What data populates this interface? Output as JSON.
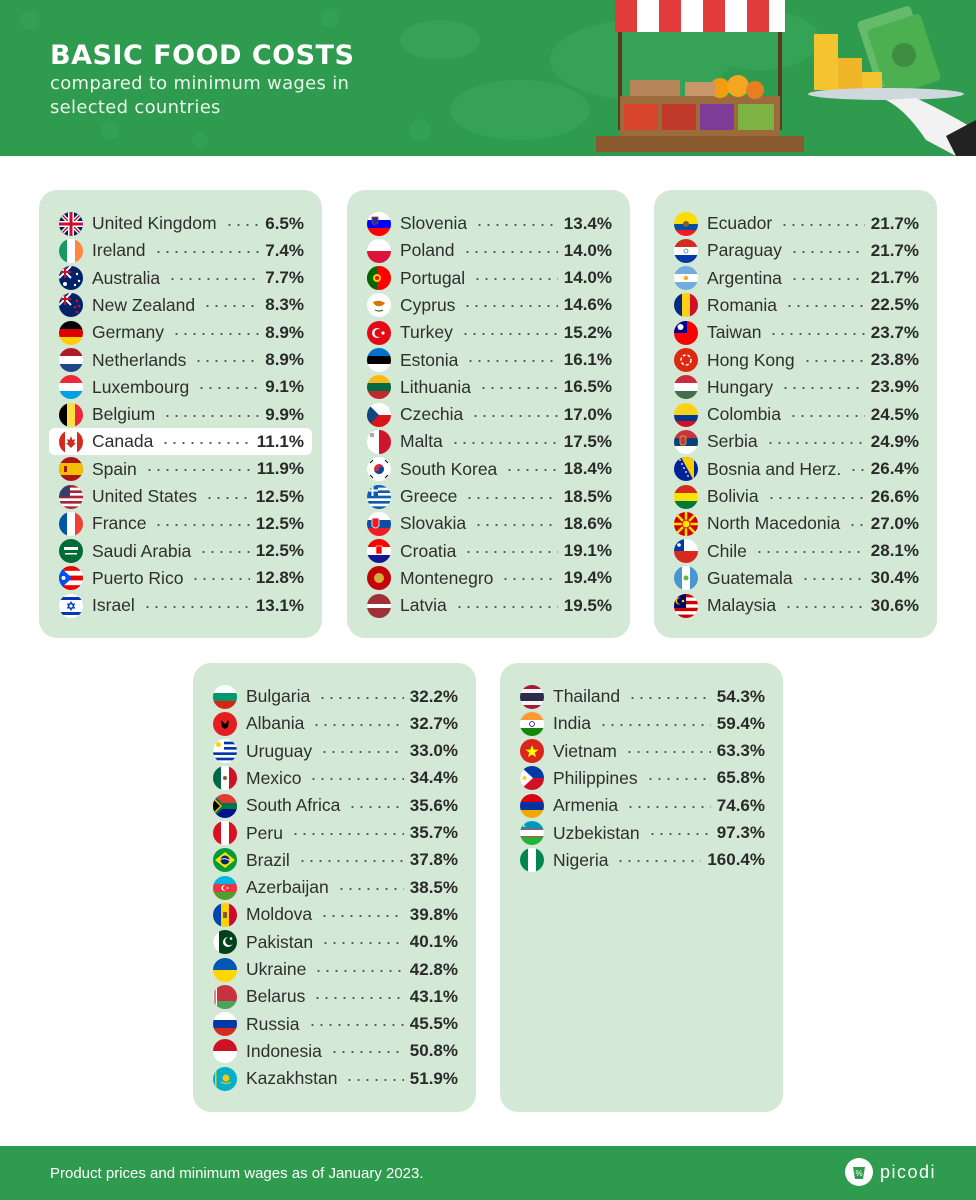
{
  "header": {
    "title": "BASIC FOOD COSTS",
    "subtitle": "compared to minimum wages in selected countries"
  },
  "panels": [
    {
      "rows": [
        {
          "name": "United Kingdom",
          "value": "6.5%",
          "flag": "united-kingdom"
        },
        {
          "name": "Ireland",
          "value": "7.4%",
          "flag": "ireland"
        },
        {
          "name": "Australia",
          "value": "7.7%",
          "flag": "australia"
        },
        {
          "name": "New Zealand",
          "value": "8.3%",
          "flag": "new-zealand"
        },
        {
          "name": "Germany",
          "value": "8.9%",
          "flag": "germany"
        },
        {
          "name": "Netherlands",
          "value": "8.9%",
          "flag": "netherlands"
        },
        {
          "name": "Luxembourg",
          "value": "9.1%",
          "flag": "luxembourg"
        },
        {
          "name": "Belgium",
          "value": "9.9%",
          "flag": "belgium"
        },
        {
          "name": "Canada",
          "value": "11.1%",
          "flag": "canada",
          "highlight": true
        },
        {
          "name": "Spain",
          "value": "11.9%",
          "flag": "spain"
        },
        {
          "name": "United States",
          "value": "12.5%",
          "flag": "united-states"
        },
        {
          "name": "France",
          "value": "12.5%",
          "flag": "france"
        },
        {
          "name": "Saudi Arabia",
          "value": "12.5%",
          "flag": "saudi-arabia"
        },
        {
          "name": "Puerto Rico",
          "value": "12.8%",
          "flag": "puerto-rico"
        },
        {
          "name": "Israel",
          "value": "13.1%",
          "flag": "israel"
        }
      ]
    },
    {
      "rows": [
        {
          "name": "Slovenia",
          "value": "13.4%",
          "flag": "slovenia"
        },
        {
          "name": "Poland",
          "value": "14.0%",
          "flag": "poland"
        },
        {
          "name": "Portugal",
          "value": "14.0%",
          "flag": "portugal"
        },
        {
          "name": "Cyprus",
          "value": "14.6%",
          "flag": "cyprus"
        },
        {
          "name": "Turkey",
          "value": "15.2%",
          "flag": "turkey"
        },
        {
          "name": "Estonia",
          "value": "16.1%",
          "flag": "estonia"
        },
        {
          "name": "Lithuania",
          "value": "16.5%",
          "flag": "lithuania"
        },
        {
          "name": "Czechia",
          "value": "17.0%",
          "flag": "czechia"
        },
        {
          "name": "Malta",
          "value": "17.5%",
          "flag": "malta"
        },
        {
          "name": "South Korea",
          "value": "18.4%",
          "flag": "south-korea"
        },
        {
          "name": "Greece",
          "value": "18.5%",
          "flag": "greece"
        },
        {
          "name": "Slovakia",
          "value": "18.6%",
          "flag": "slovakia"
        },
        {
          "name": "Croatia",
          "value": "19.1%",
          "flag": "croatia"
        },
        {
          "name": "Montenegro",
          "value": "19.4%",
          "flag": "montenegro"
        },
        {
          "name": "Latvia",
          "value": "19.5%",
          "flag": "latvia"
        }
      ]
    },
    {
      "rows": [
        {
          "name": "Ecuador",
          "value": "21.7%",
          "flag": "ecuador"
        },
        {
          "name": "Paraguay",
          "value": "21.7%",
          "flag": "paraguay"
        },
        {
          "name": "Argentina",
          "value": "21.7%",
          "flag": "argentina"
        },
        {
          "name": "Romania",
          "value": "22.5%",
          "flag": "romania"
        },
        {
          "name": "Taiwan",
          "value": "23.7%",
          "flag": "taiwan"
        },
        {
          "name": "Hong Kong",
          "value": "23.8%",
          "flag": "hong-kong"
        },
        {
          "name": "Hungary",
          "value": "23.9%",
          "flag": "hungary"
        },
        {
          "name": "Colombia",
          "value": "24.5%",
          "flag": "colombia"
        },
        {
          "name": "Serbia",
          "value": "24.9%",
          "flag": "serbia"
        },
        {
          "name": "Bosnia and Herz.",
          "value": "26.4%",
          "flag": "bosnia"
        },
        {
          "name": "Bolivia",
          "value": "26.6%",
          "flag": "bolivia"
        },
        {
          "name": "North Macedonia",
          "value": "27.0%",
          "flag": "north-macedonia"
        },
        {
          "name": "Chile",
          "value": "28.1%",
          "flag": "chile"
        },
        {
          "name": "Guatemala",
          "value": "30.4%",
          "flag": "guatemala"
        },
        {
          "name": "Malaysia",
          "value": "30.6%",
          "flag": "malaysia"
        }
      ]
    },
    {
      "rows": [
        {
          "name": "Bulgaria",
          "value": "32.2%",
          "flag": "bulgaria"
        },
        {
          "name": "Albania",
          "value": "32.7%",
          "flag": "albania"
        },
        {
          "name": "Uruguay",
          "value": "33.0%",
          "flag": "uruguay"
        },
        {
          "name": "Mexico",
          "value": "34.4%",
          "flag": "mexico"
        },
        {
          "name": "South Africa",
          "value": "35.6%",
          "flag": "south-africa"
        },
        {
          "name": "Peru",
          "value": "35.7%",
          "flag": "peru"
        },
        {
          "name": "Brazil",
          "value": "37.8%",
          "flag": "brazil"
        },
        {
          "name": "Azerbaijan",
          "value": "38.5%",
          "flag": "azerbaijan"
        },
        {
          "name": "Moldova",
          "value": "39.8%",
          "flag": "moldova"
        },
        {
          "name": "Pakistan",
          "value": "40.1%",
          "flag": "pakistan"
        },
        {
          "name": "Ukraine",
          "value": "42.8%",
          "flag": "ukraine"
        },
        {
          "name": "Belarus",
          "value": "43.1%",
          "flag": "belarus"
        },
        {
          "name": "Russia",
          "value": "45.5%",
          "flag": "russia"
        },
        {
          "name": "Indonesia",
          "value": "50.8%",
          "flag": "indonesia"
        },
        {
          "name": "Kazakhstan",
          "value": "51.9%",
          "flag": "kazakhstan"
        }
      ]
    },
    {
      "rows": [
        {
          "name": "Thailand",
          "value": "54.3%",
          "flag": "thailand"
        },
        {
          "name": "India",
          "value": "59.4%",
          "flag": "india"
        },
        {
          "name": "Vietnam",
          "value": "63.3%",
          "flag": "vietnam"
        },
        {
          "name": "Philippines",
          "value": "65.8%",
          "flag": "philippines"
        },
        {
          "name": "Armenia",
          "value": "74.6%",
          "flag": "armenia"
        },
        {
          "name": "Uzbekistan",
          "value": "97.3%",
          "flag": "uzbekistan"
        },
        {
          "name": "Nigeria",
          "value": "160.4%",
          "flag": "nigeria"
        }
      ]
    }
  ],
  "footer": {
    "note": "Product prices and minimum wages as of January 2023.",
    "brand": "picodi"
  },
  "colors": {
    "brand_green": "#2e9b4e",
    "panel_bg": "#d3e8d5",
    "highlight_row": "#ffffff"
  }
}
